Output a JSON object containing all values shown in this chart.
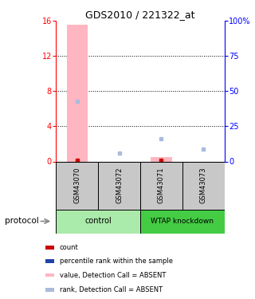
{
  "title": "GDS2010 / 221322_at",
  "samples": [
    "GSM43070",
    "GSM43072",
    "GSM43071",
    "GSM43073"
  ],
  "bar_values": [
    15.6,
    0.0,
    0.5,
    0.0
  ],
  "rank_values": [
    43.0,
    6.0,
    16.0,
    9.0
  ],
  "count_values": [
    1,
    0,
    1,
    0
  ],
  "detection_calls": [
    "ABSENT",
    "ABSENT",
    "ABSENT",
    "ABSENT"
  ],
  "bar_color_absent": "#FFB6C1",
  "bar_color_present": "#FF4444",
  "rank_color_absent": "#AABBDD",
  "rank_color_present": "#2222AA",
  "count_color": "#CC0000",
  "ylim_left": [
    0,
    16
  ],
  "ylim_right": [
    0,
    100
  ],
  "yticks_left": [
    0,
    4,
    8,
    12,
    16
  ],
  "yticks_right": [
    0,
    25,
    50,
    75,
    100
  ],
  "ytick_labels_right": [
    "0",
    "25",
    "50",
    "75",
    "100%"
  ],
  "control_color": "#AAEAAA",
  "knockdown_color": "#44CC44",
  "sample_box_color": "#C8C8C8",
  "legend_items": [
    {
      "color": "#CC0000",
      "label": "count"
    },
    {
      "color": "#2244AA",
      "label": "percentile rank within the sample"
    },
    {
      "color": "#FFB6C1",
      "label": "value, Detection Call = ABSENT"
    },
    {
      "color": "#AABBDD",
      "label": "rank, Detection Call = ABSENT"
    }
  ]
}
